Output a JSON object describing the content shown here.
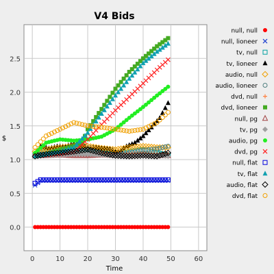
{
  "chart_data": {
    "type": "scatter",
    "title": "V4 Bids",
    "xlabel": "Time",
    "ylabel": "$",
    "xlim": [
      -3,
      63
    ],
    "ylim": [
      -0.35,
      3.0
    ],
    "xticks": [
      0,
      10,
      20,
      30,
      40,
      50,
      60
    ],
    "yticks": [
      0.0,
      0.5,
      1.0,
      1.5,
      2.0,
      2.5
    ],
    "ytick_labels": [
      "0.0",
      "0.5",
      "1.0",
      "1.5",
      "2.0",
      "2.5"
    ],
    "grid": true,
    "legend_position": "right",
    "series": [
      {
        "name": "null, null",
        "marker": "circle-filled",
        "color": "#ff0000",
        "x": [
          1,
          10,
          20,
          30,
          40,
          49
        ],
        "y": [
          0.0,
          0.0,
          0.0,
          0.0,
          0.0,
          0.0
        ]
      },
      {
        "name": "null, lioneer",
        "marker": "x",
        "color": "#1f3fd0",
        "x": [
          1,
          3,
          10,
          20,
          30,
          40,
          49
        ],
        "y": [
          0.62,
          0.69,
          0.69,
          0.69,
          0.69,
          0.69,
          0.69
        ]
      },
      {
        "name": "tv, null",
        "marker": "square-open",
        "color": "#00a0a0",
        "x": [
          1,
          5,
          10,
          15,
          20,
          25,
          30,
          35,
          40,
          45,
          49
        ],
        "y": [
          1.07,
          1.13,
          1.12,
          1.15,
          1.16,
          1.1,
          1.08,
          1.12,
          1.15,
          1.1,
          1.07
        ]
      },
      {
        "name": "tv, lioneer",
        "marker": "triangle-filled",
        "color": "#000000",
        "x": [
          1,
          3,
          6,
          9,
          12,
          15,
          17,
          20,
          23,
          26,
          28,
          31,
          34,
          37,
          40,
          43,
          46,
          49
        ],
        "y": [
          1.05,
          1.2,
          1.17,
          1.2,
          1.2,
          1.24,
          1.23,
          1.18,
          1.18,
          1.17,
          1.16,
          1.11,
          1.2,
          1.25,
          1.35,
          1.48,
          1.62,
          1.84
        ]
      },
      {
        "name": "audio, null",
        "marker": "diamond-open",
        "color": "#f0a000",
        "x": [
          1,
          5,
          10,
          15,
          20,
          25,
          30,
          35,
          40,
          45,
          49
        ],
        "y": [
          1.12,
          1.15,
          1.18,
          1.2,
          1.2,
          1.17,
          1.15,
          1.18,
          1.2,
          1.18,
          1.18
        ]
      },
      {
        "name": "audio, lioneer",
        "marker": "circle-open",
        "color": "#508080",
        "x": [
          1,
          5,
          10,
          15,
          20,
          25,
          30,
          35,
          40,
          45,
          49
        ],
        "y": [
          1.08,
          1.08,
          1.1,
          1.12,
          1.14,
          1.1,
          1.06,
          1.1,
          1.14,
          1.16,
          1.2
        ]
      },
      {
        "name": "dvd, null",
        "marker": "plus",
        "color": "#ff8040",
        "x": [
          1,
          5,
          10,
          15,
          20,
          25,
          30,
          35,
          40,
          45,
          49
        ],
        "y": [
          1.06,
          1.07,
          1.08,
          1.09,
          1.09,
          1.1,
          1.08,
          1.09,
          1.1,
          1.09,
          1.09
        ]
      },
      {
        "name": "dvd, lioneer",
        "marker": "square-filled",
        "color": "#44aa22",
        "x": [
          1,
          5,
          10,
          15,
          18,
          20,
          25,
          30,
          35,
          40,
          45,
          49
        ],
        "y": [
          1.05,
          1.08,
          1.15,
          1.2,
          1.25,
          1.45,
          1.75,
          2.05,
          2.3,
          2.5,
          2.68,
          2.8
        ]
      },
      {
        "name": "null, pg",
        "marker": "triangle-open",
        "color": "#a04040",
        "x": [
          1,
          5,
          10,
          15,
          20,
          25,
          30,
          35,
          40,
          45,
          49
        ],
        "y": [
          1.06,
          1.06,
          1.07,
          1.06,
          1.06,
          1.07,
          1.06,
          1.06,
          1.07,
          1.06,
          1.06
        ]
      },
      {
        "name": "tv, pg",
        "marker": "diamond-filled",
        "color": "#a0a0a0",
        "x": [
          1,
          5,
          10,
          15,
          20,
          25,
          30,
          35,
          40,
          45,
          49
        ],
        "y": [
          1.05,
          1.06,
          1.07,
          1.08,
          1.08,
          1.07,
          1.05,
          1.06,
          1.07,
          1.06,
          1.05
        ]
      },
      {
        "name": "audio, pg",
        "marker": "circle-filled",
        "color": "#22ee22",
        "x": [
          1,
          5,
          10,
          15,
          20,
          25,
          30,
          35,
          40,
          45,
          49
        ],
        "y": [
          1.1,
          1.25,
          1.3,
          1.28,
          1.3,
          1.34,
          1.45,
          1.62,
          1.78,
          1.95,
          2.08
        ]
      },
      {
        "name": "dvd, pg",
        "marker": "x",
        "color": "#ff2020",
        "x": [
          1,
          5,
          10,
          15,
          20,
          25,
          30,
          35,
          40,
          45,
          49
        ],
        "y": [
          1.05,
          1.07,
          1.09,
          1.12,
          1.3,
          1.52,
          1.73,
          1.93,
          2.13,
          2.33,
          2.48
        ]
      },
      {
        "name": "null, flat",
        "marker": "square-open",
        "color": "#0000dd",
        "x": [
          1,
          3,
          10,
          20,
          30,
          40,
          49
        ],
        "y": [
          0.65,
          0.7,
          0.7,
          0.7,
          0.7,
          0.7,
          0.7
        ]
      },
      {
        "name": "tv, flat",
        "marker": "triangle-filled",
        "color": "#10a0b0",
        "x": [
          1,
          5,
          10,
          15,
          20,
          25,
          30,
          35,
          40,
          45,
          49
        ],
        "y": [
          1.05,
          1.08,
          1.12,
          1.18,
          1.4,
          1.68,
          1.95,
          2.2,
          2.43,
          2.6,
          2.72
        ]
      },
      {
        "name": "audio, flat",
        "marker": "diamond-open",
        "color": "#000000",
        "x": [
          1,
          5,
          10,
          15,
          20,
          25,
          30,
          35,
          40,
          45,
          49
        ],
        "y": [
          1.05,
          1.08,
          1.1,
          1.12,
          1.15,
          1.1,
          1.06,
          1.05,
          1.06,
          1.05,
          1.1
        ]
      },
      {
        "name": "dvd, flat",
        "marker": "circle-open",
        "color": "#f0a000",
        "x": [
          1,
          5,
          10,
          15,
          20,
          25,
          30,
          35,
          40,
          45,
          49
        ],
        "y": [
          1.18,
          1.35,
          1.45,
          1.55,
          1.5,
          1.48,
          1.45,
          1.42,
          1.45,
          1.55,
          1.7
        ]
      }
    ]
  }
}
